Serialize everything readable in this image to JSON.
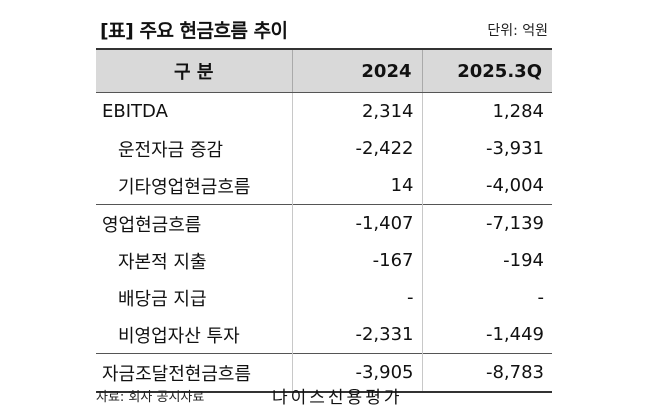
{
  "title": "[표] 주요 현금흐름 추이",
  "unit": "단위: 억원",
  "headers": [
    "구 분",
    "2024",
    "2025.3Q"
  ],
  "rows": [
    {
      "label": "EBITDA",
      "v2024": "2,314",
      "v2025": "1,284"
    },
    {
      "label": "운전자금 증감",
      "v2024": "-2,422",
      "v2025": "-3,931"
    },
    {
      "label": "기타영업현금흐름",
      "v2024": "14",
      "v2025": "-4,004"
    },
    {
      "label": "영업현금흐름",
      "v2024": "-1,407",
      "v2025": "-7,139"
    },
    {
      "label": "자본적 지출",
      "v2024": "-167",
      "v2025": "-194"
    },
    {
      "label": "배당금 지급",
      "v2024": "-",
      "v2025": "-"
    },
    {
      "label": "비영업자산 투자",
      "v2024": "-2,331",
      "v2025": "-1,449"
    },
    {
      "label": "자금조달전현금흐름",
      "v2024": "-3,905",
      "v2025": "-8,783"
    }
  ],
  "source": "자료: 회사 공시자료",
  "brand": "나이스신용평가"
}
